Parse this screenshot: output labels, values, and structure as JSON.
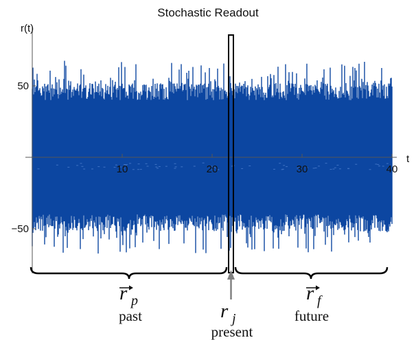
{
  "title": "Stochastic Readout",
  "y_axis_label": "r(t)",
  "x_axis_label": "t",
  "x_ticks": [
    {
      "value": 10,
      "label": "10"
    },
    {
      "value": 20,
      "label": "20"
    },
    {
      "value": 30,
      "label": "30"
    },
    {
      "value": 40,
      "label": "40"
    }
  ],
  "y_ticks": [
    {
      "value": 50,
      "label": "50"
    },
    {
      "value": -50,
      "label": "−50"
    }
  ],
  "annotations": {
    "past_symbol": "r",
    "past_subscript": "p",
    "past_label": "past",
    "present_symbol": "r",
    "present_subscript": "j",
    "present_label": "present",
    "future_symbol": "r",
    "future_subscript": "f",
    "future_label": "future"
  },
  "colors": {
    "signal": "#0d47a1",
    "axis": "#555555",
    "highlight_box": "#000000",
    "arrow": "#808080"
  },
  "chart_data": {
    "type": "line",
    "title": "Stochastic Readout",
    "xlabel": "t",
    "ylabel": "r(t)",
    "xlim": [
      0,
      40
    ],
    "ylim": [
      -65,
      65
    ],
    "grid": false,
    "present_t": 22,
    "signal_description": "dense noise signal, amplitude roughly between -50 and 50 with spikes near ±65"
  }
}
